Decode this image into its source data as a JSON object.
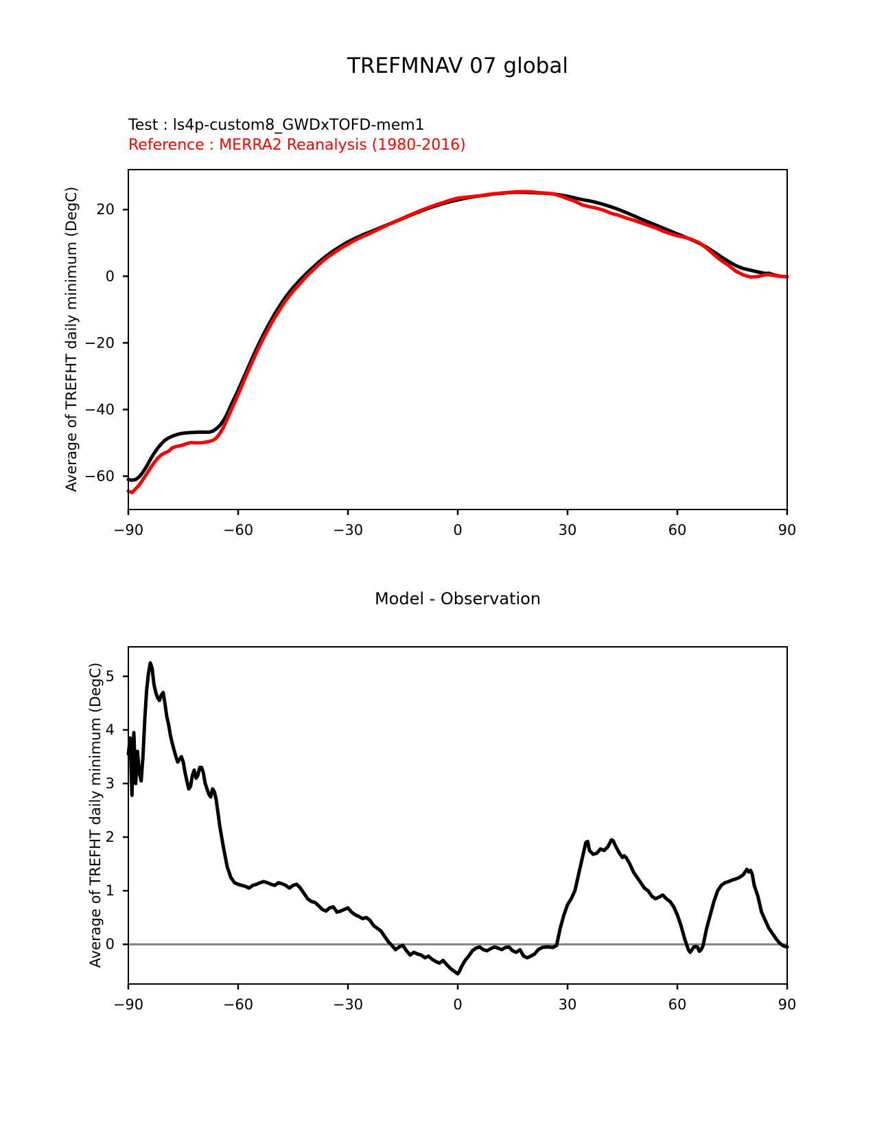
{
  "figure": {
    "title": "TREFMNAV 07 global",
    "legend": [
      {
        "label": "Test : ls4p-custom8_GWDxTOFD-mem1",
        "color": "#000000"
      },
      {
        "label": "Reference : MERRA2 Reanalysis (1980-2016)",
        "color": "#ff0000"
      }
    ]
  },
  "colors": {
    "test": "#000000",
    "reference": "#ff0000",
    "zero_line": "#808080"
  },
  "chart_data": [
    {
      "type": "line",
      "title": "",
      "xlabel": "",
      "ylabel": "Average of TREFHT daily minimum (DegC)",
      "xlim": [
        -90,
        90
      ],
      "ylim": [
        -70,
        32
      ],
      "grid": false,
      "legend_position": "above-left",
      "xticks": [
        -90,
        -60,
        -30,
        0,
        30,
        60,
        90
      ],
      "xtick_labels": [
        "−90",
        "−60",
        "−30",
        "0",
        "30",
        "60",
        "90"
      ],
      "yticks": [
        20,
        0,
        -20,
        -40,
        -60
      ],
      "ytick_labels": [
        "20",
        "0",
        "−20",
        "−40",
        "−60"
      ],
      "series": [
        {
          "id": "test-curve",
          "name": "Test : ls4p-custom8_GWDxTOFD-mem1",
          "color": "#000000",
          "x": [
            -90,
            -89,
            -88,
            -87,
            -86,
            -85,
            -84,
            -83,
            -82,
            -81,
            -80,
            -79,
            -78,
            -77,
            -76,
            -75,
            -74,
            -73,
            -72,
            -71,
            -70,
            -69,
            -68,
            -67,
            -66,
            -65,
            -64,
            -63,
            -62,
            -61,
            -60,
            -59,
            -58,
            -57,
            -56,
            -55,
            -54,
            -53,
            -52,
            -51,
            -50,
            -49,
            -48,
            -47,
            -46,
            -45,
            -44,
            -43,
            -42,
            -41,
            -40,
            -38,
            -36,
            -34,
            -32,
            -30,
            -28,
            -26,
            -24,
            -22,
            -20,
            -18,
            -16,
            -14,
            -12,
            -10,
            -8,
            -6,
            -4,
            -2,
            0,
            2,
            4,
            6,
            8,
            10,
            12,
            14,
            16,
            18,
            20,
            22,
            24,
            26,
            28,
            30,
            32,
            34,
            36,
            38,
            40,
            42,
            44,
            46,
            48,
            50,
            52,
            54,
            56,
            58,
            60,
            62,
            64,
            66,
            68,
            70,
            72,
            74,
            76,
            78,
            80,
            82,
            84,
            85,
            86,
            87,
            88,
            89,
            90
          ],
          "y": [
            -61,
            -61.2,
            -61,
            -60.2,
            -58.8,
            -57,
            -55,
            -53.2,
            -51.6,
            -50.3,
            -49.2,
            -48.5,
            -48,
            -47.6,
            -47.3,
            -47.1,
            -47,
            -46.9,
            -46.85,
            -46.8,
            -46.75,
            -46.8,
            -46.8,
            -46.5,
            -45.8,
            -44.8,
            -43.3,
            -41.3,
            -38.8,
            -36.5,
            -34.2,
            -31.7,
            -29.2,
            -26.7,
            -24.2,
            -21.8,
            -19.5,
            -17.3,
            -15.2,
            -13.2,
            -11.3,
            -9.5,
            -7.8,
            -6.2,
            -4.8,
            -3.4,
            -2.2,
            -1,
            0.1,
            1.2,
            2.2,
            4.2,
            6,
            7.6,
            9,
            10.3,
            11.4,
            12.4,
            13.3,
            14.2,
            15.1,
            16,
            16.9,
            17.8,
            18.7,
            19.6,
            20.4,
            21.1,
            21.8,
            22.4,
            22.9,
            23.4,
            23.8,
            24.1,
            24.4,
            24.7,
            24.9,
            25.1,
            25.2,
            25.2,
            25.1,
            25,
            24.9,
            24.7,
            24.4,
            24,
            23.5,
            23,
            22.6,
            22.1,
            21.5,
            20.8,
            20,
            19.1,
            18.2,
            17.2,
            16.3,
            15.4,
            14.5,
            13.6,
            12.7,
            11.8,
            10.9,
            9.9,
            8.7,
            7.3,
            5.8,
            4.4,
            3.2,
            2.3,
            1.8,
            1.3,
            0.85,
            0.9,
            0.55,
            0.25,
            0.05,
            -0.1,
            -0.15
          ]
        },
        {
          "id": "reference-curve",
          "name": "Reference : MERRA2 Reanalysis (1980-2016)",
          "color": "#ff0000",
          "x": [
            -90,
            -89,
            -88,
            -87,
            -86,
            -85,
            -84,
            -83,
            -82,
            -81,
            -80,
            -79,
            -78,
            -77,
            -76,
            -75,
            -74,
            -73,
            -72,
            -71,
            -70,
            -69,
            -68,
            -67,
            -66,
            -65,
            -64,
            -63,
            -62,
            -61,
            -60,
            -59,
            -58,
            -57,
            -56,
            -55,
            -54,
            -53,
            -52,
            -51,
            -50,
            -49,
            -48,
            -47,
            -46,
            -45,
            -44,
            -43,
            -42,
            -41,
            -40,
            -38,
            -36,
            -34,
            -32,
            -30,
            -28,
            -26,
            -24,
            -22,
            -20,
            -18,
            -16,
            -14,
            -12,
            -10,
            -8,
            -6,
            -4,
            -2,
            0,
            2,
            4,
            6,
            8,
            10,
            12,
            14,
            16,
            18,
            20,
            22,
            24,
            26,
            28,
            30,
            32,
            34,
            36,
            38,
            40,
            42,
            44,
            46,
            48,
            50,
            52,
            54,
            56,
            58,
            60,
            62,
            64,
            66,
            68,
            70,
            72,
            74,
            76,
            78,
            80,
            82,
            84,
            85,
            86,
            87,
            88,
            89,
            90
          ],
          "y": [
            -64.5,
            -64.9,
            -63.8,
            -62.6,
            -61,
            -59.3,
            -57.6,
            -56,
            -54.6,
            -53.6,
            -53,
            -52.5,
            -51.5,
            -51.1,
            -50.9,
            -50.6,
            -50.2,
            -49.9,
            -50,
            -50,
            -50,
            -49.8,
            -49.6,
            -49.3,
            -48.6,
            -47.2,
            -45.3,
            -42.9,
            -40.4,
            -37.9,
            -35.5,
            -32.9,
            -30.3,
            -27.8,
            -25.3,
            -22.9,
            -20.6,
            -18.4,
            -16.35,
            -14.3,
            -12.4,
            -10.65,
            -8.95,
            -7.3,
            -5.85,
            -4.5,
            -3.3,
            -2.05,
            -0.85,
            0.35,
            1.4,
            3.48,
            5.38,
            6.9,
            8.38,
            9.62,
            10.85,
            11.92,
            12.85,
            13.9,
            14.95,
            16.02,
            16.95,
            17.92,
            18.85,
            19.8,
            20.62,
            21.42,
            22.1,
            22.85,
            23.45,
            23.7,
            23.92,
            24.15,
            24.52,
            24.75,
            25,
            25.15,
            25.35,
            25.4,
            25.32,
            25.1,
            24.95,
            24.76,
            24.1,
            23.26,
            22.5,
            21.4,
            20.85,
            20.4,
            19.75,
            18.85,
            18.28,
            17.48,
            16.85,
            16.05,
            15.3,
            14.55,
            13.58,
            12.8,
            12.15,
            11.7,
            11,
            10.03,
            8.4,
            6.5,
            4.7,
            3.23,
            1.5,
            0.4,
            -0.25,
            -0.1,
            0.45,
            0.5,
            0.3,
            0.1,
            0,
            -0.1,
            -0.1
          ]
        }
      ]
    },
    {
      "type": "line",
      "title": "Model - Observation",
      "xlabel": "",
      "ylabel": "Average of TREFHT daily minimum (DegC)",
      "xlim": [
        -90,
        90
      ],
      "ylim": [
        -0.74,
        5.55
      ],
      "grid": false,
      "zero_line": {
        "y": 0,
        "color": "#808080"
      },
      "xticks": [
        -90,
        -60,
        -30,
        0,
        30,
        60,
        90
      ],
      "xtick_labels": [
        "−90",
        "−60",
        "−30",
        "0",
        "30",
        "60",
        "90"
      ],
      "yticks": [
        5,
        4,
        3,
        2,
        1,
        0
      ],
      "ytick_labels": [
        "5",
        "4",
        "3",
        "2",
        "1",
        "0"
      ],
      "series": [
        {
          "id": "difference-curve",
          "name": "Model - Observation",
          "color": "#000000",
          "x": [
            -90,
            -89.5,
            -89,
            -88.5,
            -88,
            -87.5,
            -87,
            -86.5,
            -86,
            -85.5,
            -85,
            -84.5,
            -84,
            -83.5,
            -83,
            -82.5,
            -82,
            -81.5,
            -81,
            -80.5,
            -80,
            -79.5,
            -79,
            -78.5,
            -78,
            -77,
            -76.5,
            -76,
            -75.5,
            -75,
            -74.5,
            -74,
            -73.5,
            -73,
            -72.5,
            -72,
            -71.5,
            -71,
            -70.5,
            -70,
            -69.5,
            -69,
            -68.5,
            -68,
            -67.5,
            -67,
            -66.5,
            -66,
            -65.5,
            -65,
            -64,
            -63,
            -62,
            -61,
            -60,
            -59,
            -58,
            -57,
            -56,
            -55,
            -54,
            -53,
            -52,
            -51,
            -50,
            -49,
            -48,
            -47,
            -46,
            -45,
            -44,
            -43,
            -42,
            -41,
            -40,
            -39,
            -38,
            -37,
            -36,
            -35,
            -34,
            -33,
            -32,
            -31,
            -30,
            -29,
            -28,
            -27,
            -26,
            -25,
            -24,
            -23,
            -22,
            -21,
            -20,
            -19,
            -18,
            -17,
            -16,
            -15,
            -14,
            -13,
            -12,
            -11,
            -10,
            -9,
            -8,
            -7,
            -6,
            -5,
            -4,
            -3,
            -2,
            -1,
            0,
            0.5,
            1,
            2,
            3,
            4,
            5,
            6,
            7,
            8,
            9,
            10,
            11,
            12,
            13,
            14,
            15,
            16,
            17,
            18,
            19,
            20,
            21,
            22,
            23,
            24,
            25,
            26,
            27,
            28,
            29,
            30,
            31,
            32,
            33,
            34,
            35,
            35.5,
            36,
            37,
            38,
            39,
            40,
            41,
            42,
            42.5,
            43,
            44,
            45,
            45.5,
            46,
            47,
            48,
            49,
            50,
            51,
            52,
            53,
            54,
            55,
            56,
            57,
            58,
            59,
            60,
            61,
            62,
            63,
            63.5,
            64,
            64.5,
            65,
            65.5,
            66,
            66.5,
            67,
            68,
            69,
            70,
            71,
            72,
            73,
            74,
            75,
            76,
            77,
            78,
            79,
            79.5,
            80,
            80.5,
            81,
            82,
            83,
            84,
            85,
            86,
            87,
            88,
            89,
            90
          ],
          "y": [
            3.55,
            3.85,
            2.78,
            3.95,
            3,
            3.6,
            3.2,
            3.05,
            3.5,
            4.2,
            4.75,
            5.05,
            5.25,
            5.15,
            4.85,
            4.7,
            4.6,
            4.55,
            4.65,
            4.7,
            4.5,
            4.25,
            4.1,
            3.9,
            3.75,
            3.5,
            3.4,
            3.45,
            3.5,
            3.4,
            3.2,
            3.05,
            2.9,
            2.95,
            3.15,
            3.25,
            3.1,
            3.15,
            3.3,
            3.3,
            3.2,
            3,
            2.9,
            2.8,
            2.75,
            2.9,
            2.85,
            2.7,
            2.45,
            2.2,
            1.8,
            1.45,
            1.25,
            1.15,
            1.12,
            1.1,
            1.08,
            1.05,
            1.1,
            1.12,
            1.15,
            1.17,
            1.15,
            1.12,
            1.1,
            1.15,
            1.13,
            1.1,
            1.05,
            1.1,
            1.12,
            1.05,
            0.95,
            0.85,
            0.8,
            0.78,
            0.72,
            0.65,
            0.62,
            0.68,
            0.7,
            0.6,
            0.62,
            0.65,
            0.68,
            0.6,
            0.55,
            0.52,
            0.48,
            0.5,
            0.45,
            0.35,
            0.3,
            0.25,
            0.15,
            0.05,
            -0.02,
            -0.1,
            -0.05,
            -0.02,
            -0.12,
            -0.2,
            -0.15,
            -0.18,
            -0.2,
            -0.25,
            -0.22,
            -0.28,
            -0.32,
            -0.35,
            -0.3,
            -0.38,
            -0.45,
            -0.5,
            -0.55,
            -0.5,
            -0.42,
            -0.3,
            -0.22,
            -0.12,
            -0.07,
            -0.05,
            -0.1,
            -0.12,
            -0.08,
            -0.05,
            -0.07,
            -0.1,
            -0.06,
            -0.05,
            -0.12,
            -0.15,
            -0.1,
            -0.22,
            -0.25,
            -0.22,
            -0.18,
            -0.1,
            -0.06,
            -0.05,
            -0.05,
            -0.06,
            -0.02,
            0.3,
            0.55,
            0.74,
            0.85,
            1,
            1.3,
            1.6,
            1.9,
            1.92,
            1.75,
            1.68,
            1.7,
            1.78,
            1.75,
            1.82,
            1.95,
            1.93,
            1.85,
            1.72,
            1.62,
            1.65,
            1.62,
            1.5,
            1.35,
            1.25,
            1.15,
            1.05,
            1,
            0.9,
            0.85,
            0.88,
            0.92,
            0.85,
            0.8,
            0.7,
            0.55,
            0.35,
            0.1,
            -0.1,
            -0.15,
            -0.1,
            -0.05,
            -0.04,
            -0.05,
            -0.13,
            -0.1,
            -0.03,
            0.3,
            0.55,
            0.8,
            1,
            1.1,
            1.15,
            1.17,
            1.2,
            1.22,
            1.25,
            1.3,
            1.4,
            1.35,
            1.38,
            1.3,
            1.1,
            0.9,
            0.6,
            0.45,
            0.3,
            0.2,
            0.1,
            0.02,
            -0.03,
            -0.05
          ]
        }
      ]
    }
  ]
}
